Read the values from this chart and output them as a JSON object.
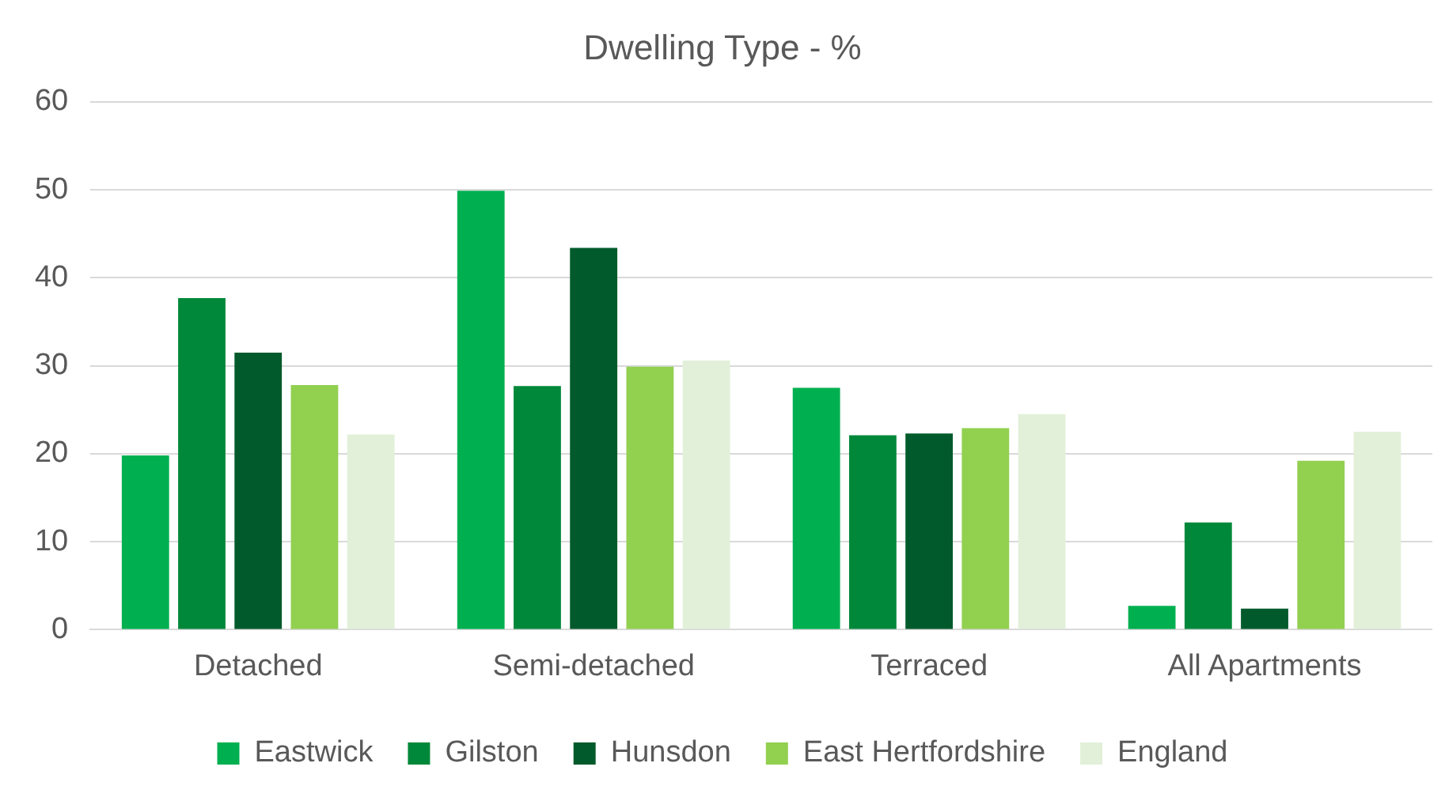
{
  "chart_data": {
    "type": "bar",
    "title": "Dwelling Type - %",
    "categories": [
      "Detached",
      "Semi-detached",
      "Terraced",
      "All Apartments"
    ],
    "series": [
      {
        "name": "Eastwick",
        "color": "#00b050",
        "values": [
          19.8,
          49.9,
          27.5,
          2.7
        ]
      },
      {
        "name": "Gilston",
        "color": "#00883a",
        "values": [
          37.7,
          27.7,
          22.1,
          12.2
        ]
      },
      {
        "name": "Hunsdon",
        "color": "#005a2b",
        "values": [
          31.5,
          43.4,
          22.3,
          2.4
        ]
      },
      {
        "name": "East Hertfordshire",
        "color": "#92d050",
        "values": [
          27.8,
          29.9,
          22.9,
          19.2
        ]
      },
      {
        "name": "England",
        "color": "#e2f0d9",
        "values": [
          22.2,
          30.6,
          24.5,
          22.5
        ]
      }
    ],
    "ylim": [
      0,
      60
    ],
    "yticks": [
      0,
      10,
      20,
      30,
      40,
      50,
      60
    ],
    "grid": "y",
    "legend": "bottom"
  }
}
